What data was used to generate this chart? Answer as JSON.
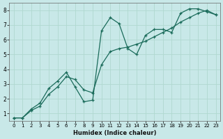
{
  "xlabel": "Humidex (Indice chaleur)",
  "bg_color": "#c8e8e8",
  "grid_color": "#b0d8d0",
  "line_color": "#1a6b5a",
  "line1_x": [
    0,
    1,
    2,
    3,
    4,
    5,
    6,
    7,
    8,
    9,
    10,
    11,
    12,
    13,
    14,
    15,
    16,
    17,
    18,
    19,
    20,
    21,
    22,
    23
  ],
  "line1_y": [
    0.7,
    0.7,
    1.3,
    1.7,
    2.7,
    3.2,
    3.8,
    2.8,
    1.8,
    1.9,
    6.6,
    7.5,
    7.1,
    5.4,
    5.0,
    6.3,
    6.7,
    6.7,
    6.5,
    7.8,
    8.1,
    8.1,
    7.9,
    7.7
  ],
  "line2_x": [
    0,
    1,
    2,
    3,
    4,
    5,
    6,
    7,
    8,
    9,
    10,
    11,
    12,
    13,
    14,
    15,
    16,
    17,
    18,
    19,
    20,
    21,
    22,
    23
  ],
  "line2_y": [
    0.7,
    0.7,
    1.2,
    1.5,
    2.3,
    2.8,
    3.5,
    3.3,
    2.6,
    2.4,
    4.3,
    5.2,
    5.4,
    5.5,
    5.7,
    5.9,
    6.2,
    6.5,
    6.8,
    7.2,
    7.5,
    7.8,
    8.0,
    7.7
  ],
  "xlim": [
    -0.5,
    23.5
  ],
  "ylim": [
    0.5,
    8.5
  ],
  "yticks": [
    1,
    2,
    3,
    4,
    5,
    6,
    7,
    8
  ],
  "xticks": [
    0,
    1,
    2,
    3,
    4,
    5,
    6,
    7,
    8,
    9,
    10,
    11,
    12,
    13,
    14,
    15,
    16,
    17,
    18,
    19,
    20,
    21,
    22,
    23
  ]
}
